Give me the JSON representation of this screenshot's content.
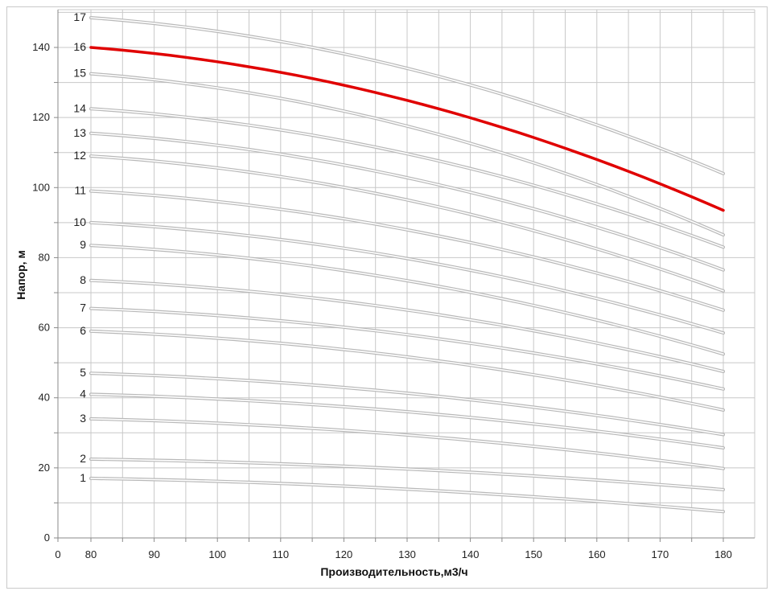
{
  "chart_data": {
    "type": "line",
    "title": "",
    "xlabel": "Производительность,м3/ч",
    "ylabel": "Напор, м",
    "xlim": [
      0,
      180
    ],
    "ylim": [
      0,
      150
    ],
    "x_ticks": [
      "0",
      "80",
      "90",
      "100",
      "110",
      "120",
      "130",
      "140",
      "150",
      "160",
      "170",
      "180"
    ],
    "y_ticks": [
      "0",
      "20",
      "40",
      "60",
      "80",
      "100",
      "120",
      "140"
    ],
    "grid": true,
    "highlight_color": "#e00000",
    "series_color": "#b8b8b8",
    "series": [
      {
        "label": "1",
        "x": [
          80,
          180
        ],
        "y": [
          17.0,
          7.5
        ]
      },
      {
        "label": "2",
        "x": [
          80,
          180
        ],
        "y": [
          22.5,
          13.8
        ]
      },
      {
        "label": "3",
        "x": [
          80,
          180
        ],
        "y": [
          34.0,
          19.8
        ]
      },
      {
        "label": "4",
        "x": [
          80,
          180
        ],
        "y": [
          41.0,
          25.7
        ]
      },
      {
        "label": "5",
        "x": [
          80,
          180
        ],
        "y": [
          47.0,
          29.5
        ]
      },
      {
        "label": "6",
        "x": [
          80,
          180
        ],
        "y": [
          59.0,
          36.5
        ]
      },
      {
        "label": "7",
        "x": [
          80,
          180
        ],
        "y": [
          65.5,
          42.5
        ]
      },
      {
        "label": "8",
        "x": [
          80,
          180
        ],
        "y": [
          73.5,
          47.5
        ]
      },
      {
        "label": "9",
        "x": [
          80,
          180
        ],
        "y": [
          83.5,
          52.5
        ]
      },
      {
        "label": "10",
        "x": [
          80,
          180
        ],
        "y": [
          90.0,
          58.5
        ]
      },
      {
        "label": "11",
        "x": [
          80,
          180
        ],
        "y": [
          99.0,
          65.0
        ]
      },
      {
        "label": "12",
        "x": [
          80,
          180
        ],
        "y": [
          109.0,
          70.5
        ]
      },
      {
        "label": "13",
        "x": [
          80,
          180
        ],
        "y": [
          115.5,
          76.5
        ]
      },
      {
        "label": "14",
        "x": [
          80,
          180
        ],
        "y": [
          122.5,
          83.0
        ]
      },
      {
        "label": "15",
        "x": [
          80,
          180
        ],
        "y": [
          132.5,
          86.5
        ]
      },
      {
        "label": "16",
        "x": [
          80,
          180
        ],
        "y": [
          140.0,
          93.5
        ],
        "highlight": true
      },
      {
        "label": "17",
        "x": [
          80,
          180
        ],
        "y": [
          148.5,
          104.0
        ]
      }
    ]
  }
}
